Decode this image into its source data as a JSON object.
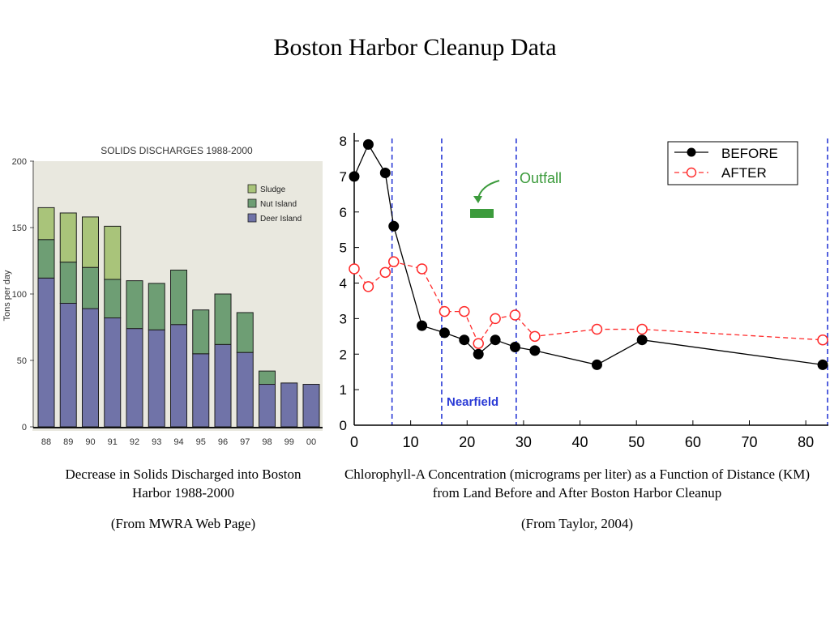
{
  "slide": {
    "title": "Boston Harbor Cleanup Data",
    "left_caption": "Decrease in Solids Discharged into Boston Harbor 1988-2000",
    "left_source": "(From MWRA Web Page)",
    "right_caption": "Chlorophyll-A Concentration (micrograms per liter) as a Function of Distance (KM) from Land Before and After Boston Harbor Cleanup",
    "right_source": "(From Taylor, 2004)"
  },
  "chart_data": [
    {
      "type": "bar",
      "stacked": true,
      "title": "SOLIDS DISCHARGES 1988-2000",
      "ylabel": "Tons per day",
      "xlabel": "",
      "ylim": [
        0,
        200
      ],
      "yticks": [
        0,
        50,
        100,
        150,
        200
      ],
      "categories": [
        "88",
        "89",
        "90",
        "91",
        "92",
        "93",
        "94",
        "95",
        "96",
        "97",
        "98",
        "99",
        "00"
      ],
      "series": [
        {
          "name": "Deer Island",
          "color": "#7073a8",
          "values": [
            112,
            93,
            89,
            82,
            74,
            73,
            77,
            55,
            62,
            56,
            32,
            33,
            32
          ]
        },
        {
          "name": "Nut Island",
          "color": "#6e9e74",
          "values": [
            29,
            31,
            31,
            29,
            36,
            35,
            41,
            33,
            38,
            30,
            10,
            0,
            0
          ]
        },
        {
          "name": "Sludge",
          "color": "#a9c47a",
          "values": [
            24,
            37,
            38,
            40,
            0,
            0,
            0,
            0,
            0,
            0,
            0,
            0,
            0
          ]
        }
      ],
      "legend_position": "top-right",
      "background": "#e9e8df"
    },
    {
      "type": "line",
      "title": "",
      "xlabel": "",
      "ylabel": "",
      "xlim": [
        0,
        84
      ],
      "ylim": [
        0,
        8
      ],
      "xticks": [
        0,
        10,
        20,
        30,
        40,
        50,
        60,
        70,
        80
      ],
      "yticks": [
        0,
        1,
        2,
        3,
        4,
        5,
        6,
        7,
        8
      ],
      "series": [
        {
          "name": "BEFORE",
          "color": "#000000",
          "style": "solid",
          "marker": "filled-circle",
          "x": [
            0,
            2.5,
            5.5,
            7,
            12,
            16,
            19.5,
            22,
            25,
            28.5,
            32,
            43,
            51,
            83
          ],
          "y": [
            7.0,
            7.9,
            7.1,
            5.6,
            2.8,
            2.6,
            2.4,
            2.0,
            2.4,
            2.2,
            2.1,
            1.7,
            2.4,
            1.7
          ]
        },
        {
          "name": "AFTER",
          "color": "#ff2a2a",
          "style": "dashed",
          "marker": "open-circle",
          "x": [
            0,
            2.5,
            5.5,
            7,
            12,
            16,
            19.5,
            22,
            25,
            28.5,
            32,
            43,
            51,
            83
          ],
          "y": [
            4.4,
            3.9,
            4.3,
            4.6,
            4.4,
            3.2,
            3.2,
            2.3,
            3.0,
            3.1,
            2.5,
            2.7,
            2.7,
            2.4
          ]
        }
      ],
      "vertical_lines": [
        {
          "x": 6.7,
          "color": "#2b3bd6",
          "style": "dashed"
        },
        {
          "x": 15.5,
          "color": "#2b3bd6",
          "style": "dashed"
        },
        {
          "x": 28.7,
          "color": "#2b3bd6",
          "style": "dashed"
        },
        {
          "x": 84,
          "color": "#2b3bd6",
          "style": "dashed"
        }
      ],
      "annotations": [
        {
          "text": "Outfall",
          "color": "#3c9b3c"
        },
        {
          "text": "Nearfield",
          "color": "#2b3bd6"
        }
      ],
      "legend_position": "top-right",
      "grid": false
    }
  ]
}
